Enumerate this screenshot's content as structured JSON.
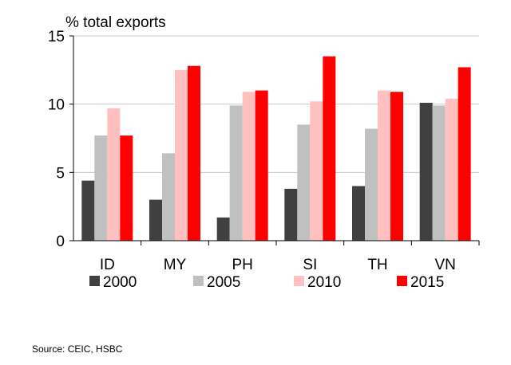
{
  "chart_data": {
    "type": "bar",
    "ylabel": "% total exports",
    "categories": [
      "ID",
      "MY",
      "PH",
      "SI",
      "TH",
      "VN"
    ],
    "series": [
      {
        "name": "2000",
        "color": "#404040",
        "values": [
          4.4,
          3.0,
          1.7,
          3.8,
          4.0,
          10.1
        ]
      },
      {
        "name": "2005",
        "color": "#c0c0c0",
        "values": [
          7.7,
          6.4,
          9.9,
          8.5,
          8.2,
          9.9
        ]
      },
      {
        "name": "2010",
        "color": "#ffc0c0",
        "values": [
          9.7,
          12.5,
          10.9,
          10.2,
          11.0,
          10.4
        ]
      },
      {
        "name": "2015",
        "color": "#ff0000",
        "values": [
          7.7,
          12.8,
          11.0,
          13.5,
          10.9,
          12.7
        ]
      }
    ],
    "ylim": [
      0,
      15
    ],
    "yticks": [
      0,
      5,
      10,
      15
    ],
    "grid": true,
    "legend": "bottom"
  },
  "source": "Source: CEIC, HSBC"
}
